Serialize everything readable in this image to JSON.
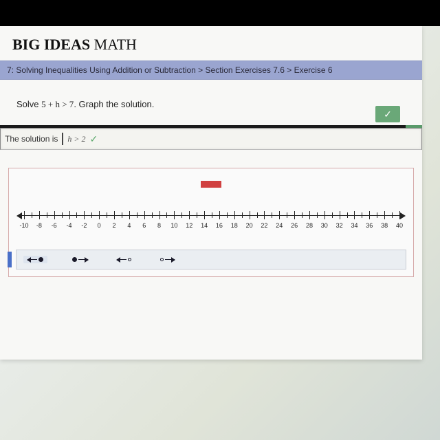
{
  "brand": {
    "big": "BIG IDEAS",
    "math": " MATH"
  },
  "breadcrumb": "7: Solving Inequalities Using Addition or Subtraction > Section Exercises 7.6 > Exercise 6",
  "problem": {
    "prefix": "Solve ",
    "expr": "5 + h > 7",
    "suffix": ". Graph the solution."
  },
  "check_icon": "✓",
  "answer": {
    "label": "The solution is",
    "value": "h > 2",
    "check": "✓"
  },
  "numberline": {
    "min": -10,
    "max": 40,
    "major_step": 2,
    "labels": [
      "-10",
      "-8",
      "-6",
      "-4",
      "-2",
      "0",
      "2",
      "4",
      "6",
      "8",
      "10",
      "12",
      "14",
      "16",
      "18",
      "20",
      "22",
      "24",
      "26",
      "28",
      "30",
      "32",
      "34",
      "36",
      "38",
      "40"
    ]
  },
  "tools": [
    {
      "name": "closed-left",
      "active": true
    },
    {
      "name": "closed-right",
      "active": false
    },
    {
      "name": "open-left",
      "active": false
    },
    {
      "name": "open-right",
      "active": false
    }
  ],
  "colors": {
    "breadcrumb_bg": "#9aa5d0",
    "check_bg": "#6aa878",
    "eraser": "#d04040",
    "toolbar_accent": "#4a70c8"
  }
}
